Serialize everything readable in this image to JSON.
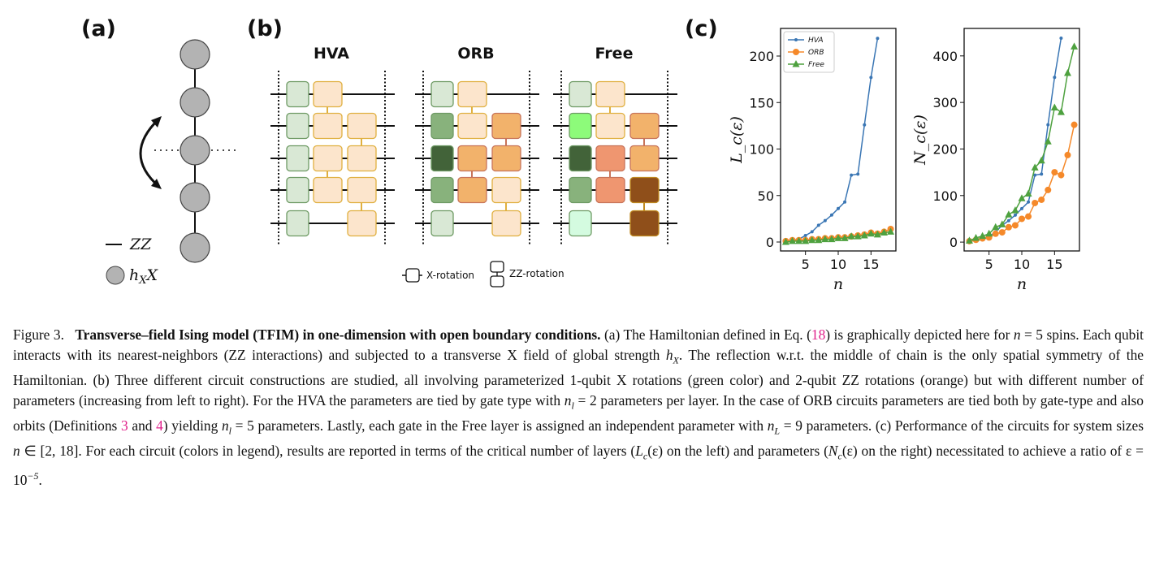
{
  "panel_labels": {
    "a": "(a)",
    "b": "(b)",
    "c": "(c)"
  },
  "panel_a": {
    "legend_zz": "ZZ",
    "legend_field": "h",
    "legend_field_sub": "X",
    "legend_field_op": "X",
    "spins": 5,
    "node_color": "#b3b3b3"
  },
  "panel_b": {
    "circuits": [
      {
        "title": "HVA",
        "x_colors": [
          "#d9e8d5",
          "#d9e8d5",
          "#d9e8d5",
          "#d9e8d5",
          "#d9e8d5"
        ],
        "zz_col1_colors": [
          "#fce5cc",
          "#fce5cc"
        ],
        "zz_col2_colors": [
          "#fce5cc",
          "#fce5cc"
        ]
      },
      {
        "title": "ORB",
        "x_colors": [
          "#d9e8d5",
          "#88b27c",
          "#426339",
          "#88b27c",
          "#d9e8d5"
        ],
        "zz_col1_colors": [
          "#fce5cc",
          "#f2b26b"
        ],
        "zz_col2_colors": [
          "#f2b26b",
          "#fce5cc"
        ]
      },
      {
        "title": "Free",
        "x_colors": [
          "#d9e8d5",
          "#8dfb7a",
          "#426339",
          "#88b27c",
          "#d4fbe0"
        ],
        "zz_col1_colors": [
          "#fce5cc",
          "#ef9670"
        ],
        "zz_col2_colors": [
          "#f2b26b",
          "#8f4f1a"
        ]
      }
    ],
    "legend": {
      "x_rotation": "X-rotation",
      "zz_rotation": "ZZ-rotation"
    }
  },
  "chart_data": [
    {
      "type": "line",
      "ylabel": "L_c(ε)",
      "xlabel": "n",
      "xlim": [
        1.2,
        18.8
      ],
      "ylim": [
        -9.6,
        229.7
      ],
      "xticks": [
        5,
        10,
        15
      ],
      "yticks": [
        0,
        50,
        100,
        150,
        200
      ],
      "grid": false,
      "legend": "top-left",
      "series": [
        {
          "name": "HVA",
          "color": "#3a76b4",
          "marker": "dot",
          "x": [
            2,
            3,
            4,
            5,
            6,
            7,
            8,
            9,
            10,
            11,
            12,
            13,
            14,
            15,
            16
          ],
          "y": [
            1,
            2,
            3,
            7,
            11,
            18,
            23,
            29,
            36,
            43,
            72,
            73,
            126,
            177,
            219
          ]
        },
        {
          "name": "ORB",
          "color": "#f5892a",
          "marker": "circle",
          "x": [
            2,
            3,
            4,
            5,
            6,
            7,
            8,
            9,
            10,
            11,
            12,
            13,
            14,
            15,
            16,
            17,
            18
          ],
          "y": [
            1,
            2,
            2,
            2,
            3,
            3,
            4,
            4,
            5,
            5,
            6,
            7,
            8,
            10,
            9,
            11,
            14
          ]
        },
        {
          "name": "Free",
          "color": "#4ea13f",
          "marker": "triangle",
          "x": [
            2,
            3,
            4,
            5,
            6,
            7,
            8,
            9,
            10,
            11,
            12,
            13,
            14,
            15,
            16,
            17,
            18
          ],
          "y": [
            0,
            1,
            1,
            1,
            2,
            2,
            3,
            3,
            4,
            4,
            6,
            6,
            7,
            9,
            8,
            10,
            11
          ]
        }
      ]
    },
    {
      "type": "line",
      "ylabel": "N_c(ε)",
      "xlabel": "n",
      "xlim": [
        1.2,
        18.8
      ],
      "ylim": [
        -19,
        459
      ],
      "xticks": [
        5,
        10,
        15
      ],
      "yticks": [
        0,
        100,
        200,
        300,
        400
      ],
      "grid": false,
      "series": [
        {
          "name": "HVA",
          "color": "#3a76b4",
          "marker": "dot",
          "x": [
            2,
            3,
            4,
            5,
            6,
            7,
            8,
            9,
            10,
            11,
            12,
            13,
            14,
            15,
            16
          ],
          "y": [
            2,
            4,
            6,
            12,
            22,
            36,
            46,
            58,
            72,
            86,
            144,
            146,
            252,
            354,
            438
          ]
        },
        {
          "name": "ORB",
          "color": "#f5892a",
          "marker": "circle",
          "x": [
            2,
            3,
            4,
            5,
            6,
            7,
            8,
            9,
            10,
            11,
            12,
            13,
            14,
            15,
            16,
            17,
            18
          ],
          "y": [
            2,
            5,
            8,
            10,
            18,
            21,
            32,
            36,
            50,
            55,
            84,
            91,
            112,
            150,
            144,
            187,
            252
          ]
        },
        {
          "name": "Free",
          "color": "#4ea13f",
          "marker": "triangle",
          "x": [
            2,
            3,
            4,
            5,
            6,
            7,
            8,
            9,
            10,
            11,
            12,
            13,
            14,
            15,
            16,
            17,
            18
          ],
          "y": [
            3,
            9,
            13,
            18,
            32,
            38,
            59,
            68,
            94,
            104,
            160,
            175,
            216,
            289,
            279,
            363,
            420
          ]
        }
      ]
    }
  ],
  "caption": {
    "label": "Figure 3.",
    "title": "Transverse–field Ising model (TFIM) in one-dimension with open boundary conditions.",
    "body": [
      {
        "t": " (a) The Hamiltonian defined in Eq. ("
      },
      {
        "t": "18",
        "s": "ref"
      },
      {
        "t": ") is graphically depicted here for "
      },
      {
        "t": "n",
        "s": "mi"
      },
      {
        "t": " = 5 spins. Each qubit interacts with its nearest-neighbors (ZZ interactions) and subjected to a transverse X field of global strength "
      },
      {
        "t": "h",
        "s": "mi"
      },
      {
        "t": "X",
        "s": "sub"
      },
      {
        "t": ". The reflection w.r.t. the middle of chain is the only spatial symmetry of the Hamiltonian. (b) Three different circuit constructions are studied, all involving parameterized 1-qubit X rotations (green color) and 2-qubit ZZ rotations (orange) but with different number of parameters (increasing from left to right). For the HVA the parameters are tied by gate type with "
      },
      {
        "t": "n",
        "s": "mi"
      },
      {
        "t": "l",
        "s": "sub"
      },
      {
        "t": " = 2 parameters per layer. In the case of ORB circuits parameters are tied both by gate-type and also orbits (Definitions "
      },
      {
        "t": "3",
        "s": "ref"
      },
      {
        "t": " and "
      },
      {
        "t": "4",
        "s": "ref"
      },
      {
        "t": ") yielding "
      },
      {
        "t": "n",
        "s": "mi"
      },
      {
        "t": "l",
        "s": "sub"
      },
      {
        "t": " = 5 parameters. Lastly, each gate in the Free layer is assigned an independent parameter with "
      },
      {
        "t": "n",
        "s": "mi"
      },
      {
        "t": "L",
        "s": "sub"
      },
      {
        "t": " = 9 parameters. (c) Performance of the circuits for system sizes "
      },
      {
        "t": "n",
        "s": "mi"
      },
      {
        "t": " ∈ [2, 18]. For each circuit (colors in legend), results are reported in terms of the critical number of layers ("
      },
      {
        "t": "L",
        "s": "mi"
      },
      {
        "t": "c",
        "s": "sub"
      },
      {
        "t": "(ε) on the left) and parameters ("
      },
      {
        "t": "N",
        "s": "mi"
      },
      {
        "t": "c",
        "s": "sub"
      },
      {
        "t": "(ε) on the right) necessitated to achieve a ratio of ε = 10"
      },
      {
        "t": "−5",
        "s": "sup"
      },
      {
        "t": "."
      }
    ],
    "ref_color": "#e0208a"
  }
}
